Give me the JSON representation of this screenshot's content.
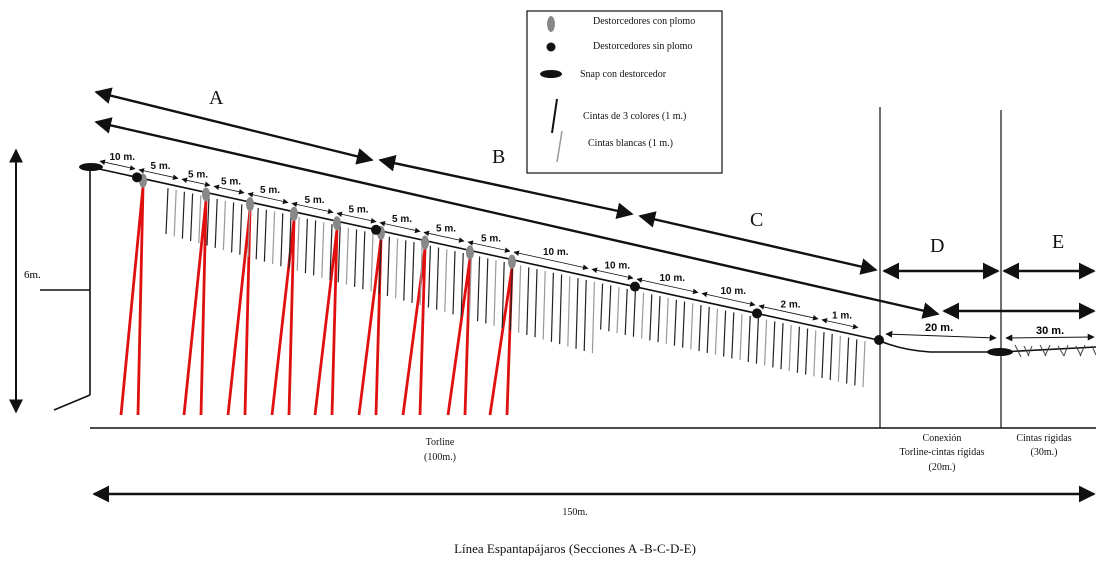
{
  "legend": {
    "items": [
      {
        "label": "Destorcedores con plomo",
        "icon": "gray-oval"
      },
      {
        "label": "Destorcedores sin plomo",
        "icon": "black-dot"
      },
      {
        "label": "Snap con destorcedor",
        "icon": "black-ellipse"
      },
      {
        "label": "Cintas de 3 colores (1 m.)",
        "icon": "black-line"
      },
      {
        "label": "Cintas blancas (1 m.)",
        "icon": "gray-line"
      }
    ]
  },
  "sections": {
    "a": "A",
    "b": "B",
    "c": "C",
    "d": "D",
    "e": "E"
  },
  "segments": [
    "10 m.",
    "5 m.",
    "5 m.",
    "5 m.",
    "5 m.",
    "5 m.",
    "5 m.",
    "5 m.",
    "5 m.",
    "5 m.",
    "10 m.",
    "10 m.",
    "10 m.",
    "10 m.",
    "2 m.",
    "1 m."
  ],
  "right_lengths": {
    "d": "20 m.",
    "e": "30 m."
  },
  "height_label": "6m.",
  "bottom_labels": {
    "torline": [
      "Torline",
      "(100m.)"
    ],
    "conexion": [
      "Conexión",
      "Torline-cintas rígidas",
      "(20m.)"
    ],
    "cintas": [
      "Cintas rígidas",
      "(30m.)"
    ]
  },
  "total_length": "150m.",
  "caption": "Línea Espantapájaros (Secciones A -B-C-D-E)",
  "colors": {
    "red": "#e01010",
    "gray": "#777777",
    "black": "#111111"
  }
}
